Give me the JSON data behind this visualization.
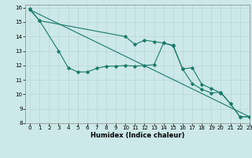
{
  "title": "",
  "xlabel": "Humidex (Indice chaleur)",
  "bg_color": "#cce8e8",
  "line_color": "#1a7a6a",
  "xlim": [
    -0.5,
    23
  ],
  "ylim": [
    8,
    16.2
  ],
  "xticks": [
    0,
    1,
    2,
    3,
    4,
    5,
    6,
    7,
    8,
    9,
    10,
    11,
    12,
    13,
    14,
    15,
    16,
    17,
    18,
    19,
    20,
    21,
    22,
    23
  ],
  "yticks": [
    8,
    9,
    10,
    11,
    12,
    13,
    14,
    15,
    16
  ],
  "series1_x": [
    0,
    1,
    3,
    4,
    5,
    6,
    7,
    8,
    9,
    10,
    11,
    12,
    13,
    14,
    15,
    16,
    17,
    18,
    19,
    20,
    21,
    22,
    23
  ],
  "series1_y": [
    15.9,
    15.1,
    13.0,
    11.85,
    11.55,
    11.55,
    11.8,
    11.95,
    11.95,
    12.0,
    11.95,
    12.0,
    12.05,
    13.55,
    13.4,
    11.75,
    11.85,
    10.7,
    10.4,
    10.1,
    9.35,
    8.45,
    8.45
  ],
  "series2_x": [
    0,
    1,
    10,
    11,
    12,
    13,
    14,
    15,
    16,
    17,
    18,
    19,
    20,
    21,
    22,
    23
  ],
  "series2_y": [
    15.85,
    15.1,
    14.0,
    13.45,
    13.75,
    13.65,
    13.55,
    13.35,
    11.75,
    10.75,
    10.35,
    10.1,
    10.15,
    9.35,
    8.45,
    8.45
  ],
  "series3_x": [
    0,
    23
  ],
  "series3_y": [
    15.85,
    8.45
  ],
  "grid_color": "#b8d4d4",
  "xlabel_fontsize": 6,
  "tick_fontsize": 5
}
